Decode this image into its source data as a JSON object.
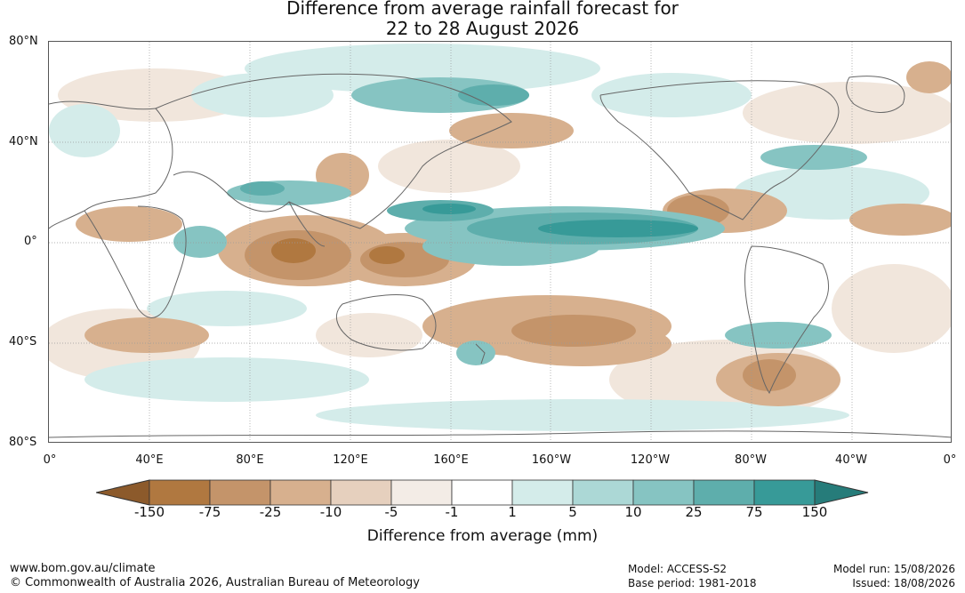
{
  "title": {
    "line1": "Difference from average rainfall forecast for",
    "line2": "22 to 28 August 2026"
  },
  "map": {
    "lat_labels": [
      "80°N",
      "40°N",
      "0°",
      "40°S",
      "80°S"
    ],
    "lon_labels": [
      "0°",
      "40°E",
      "80°E",
      "120°E",
      "160°E",
      "160°W",
      "120°W",
      "80°W",
      "40°W",
      "0°"
    ],
    "land_color": "#ffffff",
    "coastline_color": "#666666"
  },
  "colorbar": {
    "title": "Difference from average (mm)",
    "ticks": [
      "-150",
      "-75",
      "-25",
      "-10",
      "-5",
      "-1",
      "1",
      "5",
      "10",
      "25",
      "75",
      "150"
    ],
    "colors": [
      "#8c5a2b",
      "#b07840",
      "#c4946a",
      "#d7b08e",
      "#e6d0be",
      "#f3ece6",
      "#ffffff",
      "#d4ecea",
      "#acd8d6",
      "#86c4c2",
      "#5eaeac",
      "#379a98",
      "#267c7a"
    ]
  },
  "footer": {
    "url": "www.bom.gov.au/climate",
    "copyright": "© Commonwealth of Australia 2026, Australian Bureau of Meteorology",
    "model": "Model: ACCESS-S2",
    "base_period": "Base period: 1981-2018",
    "model_run": "Model run: 15/08/2026",
    "issued": "Issued: 18/08/2026"
  }
}
